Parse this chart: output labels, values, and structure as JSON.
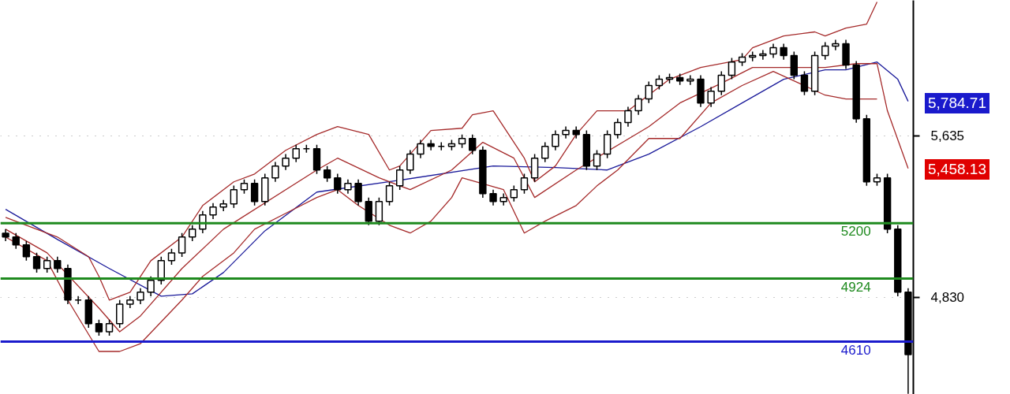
{
  "chart_data": {
    "type": "candlestick",
    "categories": [
      null,
      null,
      null,
      null,
      null,
      null,
      null,
      null,
      null,
      null,
      null,
      null,
      null,
      null,
      null,
      null,
      null,
      null,
      null,
      null,
      null,
      null,
      null,
      null,
      null,
      null,
      null,
      null,
      null,
      null,
      null,
      null,
      null,
      null,
      null,
      null,
      null,
      null,
      null,
      null,
      null,
      null,
      null,
      null,
      null,
      null,
      null,
      null,
      null,
      null,
      null,
      null,
      null,
      null,
      null,
      null,
      null,
      null,
      null,
      null,
      null,
      null,
      null,
      null,
      null,
      null,
      null,
      null,
      null,
      null,
      null,
      null,
      null,
      null,
      null,
      null,
      null,
      null,
      null,
      null,
      null,
      null,
      null,
      null,
      null,
      null,
      null,
      null
    ],
    "color": "#000000",
    "ohlc": [
      [
        5150,
        5170,
        5111,
        5131
      ],
      [
        5131,
        5151,
        5072,
        5092
      ],
      [
        5092,
        5112,
        5013,
        5033
      ],
      [
        5033,
        5053,
        4954,
        4974
      ],
      [
        4974,
        5033,
        4954,
        5013
      ],
      [
        5013,
        5033,
        4954,
        4974
      ],
      [
        4974,
        4994,
        4797,
        4817
      ],
      [
        4817,
        4837,
        4797,
        4817
      ],
      [
        4817,
        4837,
        4679,
        4699
      ],
      [
        4699,
        4719,
        4639,
        4659
      ],
      [
        4659,
        4719,
        4639,
        4699
      ],
      [
        4699,
        4817,
        4679,
        4797
      ],
      [
        4797,
        4837,
        4777,
        4817
      ],
      [
        4817,
        4876,
        4797,
        4856
      ],
      [
        4856,
        4935,
        4836,
        4915
      ],
      [
        4915,
        5033,
        4895,
        5013
      ],
      [
        5013,
        5072,
        4993,
        5052
      ],
      [
        5052,
        5151,
        5032,
        5131
      ],
      [
        5131,
        5190,
        5111,
        5170
      ],
      [
        5170,
        5261,
        5150,
        5241
      ],
      [
        5241,
        5300,
        5221,
        5280
      ],
      [
        5280,
        5316,
        5260,
        5296
      ],
      [
        5296,
        5387,
        5276,
        5367
      ],
      [
        5367,
        5418,
        5347,
        5398
      ],
      [
        5398,
        5418,
        5288,
        5308
      ],
      [
        5308,
        5446,
        5288,
        5426
      ],
      [
        5426,
        5505,
        5406,
        5485
      ],
      [
        5485,
        5544,
        5465,
        5524
      ],
      [
        5524,
        5591,
        5504,
        5571
      ],
      [
        5571,
        5591,
        5551,
        5571
      ],
      [
        5571,
        5591,
        5445,
        5465
      ],
      [
        5465,
        5485,
        5406,
        5426
      ],
      [
        5426,
        5446,
        5347,
        5367
      ],
      [
        5367,
        5418,
        5347,
        5398
      ],
      [
        5398,
        5418,
        5288,
        5308
      ],
      [
        5308,
        5328,
        5190,
        5210
      ],
      [
        5210,
        5328,
        5190,
        5308
      ],
      [
        5308,
        5406,
        5288,
        5386
      ],
      [
        5386,
        5485,
        5366,
        5465
      ],
      [
        5465,
        5564,
        5445,
        5544
      ],
      [
        5544,
        5615,
        5524,
        5595
      ],
      [
        5595,
        5615,
        5563,
        5583
      ],
      [
        5583,
        5603,
        5563,
        5583
      ],
      [
        5583,
        5615,
        5563,
        5595
      ],
      [
        5595,
        5642,
        5575,
        5622
      ],
      [
        5622,
        5642,
        5543,
        5563
      ],
      [
        5563,
        5583,
        5327,
        5347
      ],
      [
        5347,
        5367,
        5288,
        5308
      ],
      [
        5308,
        5348,
        5288,
        5328
      ],
      [
        5328,
        5387,
        5308,
        5367
      ],
      [
        5367,
        5446,
        5347,
        5426
      ],
      [
        5426,
        5544,
        5406,
        5524
      ],
      [
        5524,
        5603,
        5504,
        5583
      ],
      [
        5583,
        5662,
        5563,
        5642
      ],
      [
        5642,
        5682,
        5622,
        5662
      ],
      [
        5662,
        5682,
        5622,
        5642
      ],
      [
        5642,
        5662,
        5465,
        5485
      ],
      [
        5485,
        5564,
        5465,
        5544
      ],
      [
        5544,
        5662,
        5524,
        5642
      ],
      [
        5642,
        5721,
        5622,
        5701
      ],
      [
        5701,
        5780,
        5681,
        5760
      ],
      [
        5760,
        5839,
        5740,
        5819
      ],
      [
        5819,
        5906,
        5799,
        5886
      ],
      [
        5886,
        5937,
        5866,
        5917
      ],
      [
        5917,
        5945,
        5897,
        5925
      ],
      [
        5925,
        5945,
        5889,
        5909
      ],
      [
        5909,
        5937,
        5889,
        5917
      ],
      [
        5917,
        5937,
        5779,
        5799
      ],
      [
        5799,
        5878,
        5779,
        5858
      ],
      [
        5858,
        5957,
        5838,
        5937
      ],
      [
        5937,
        6023,
        5917,
        6003
      ],
      [
        6003,
        6047,
        5983,
        6027
      ],
      [
        6027,
        6055,
        6007,
        6035
      ],
      [
        6035,
        6063,
        6015,
        6043
      ],
      [
        6043,
        6094,
        6023,
        6074
      ],
      [
        6074,
        6094,
        6015,
        6035
      ],
      [
        6035,
        6055,
        5917,
        5937
      ],
      [
        5937,
        5957,
        5838,
        5858
      ],
      [
        5858,
        6055,
        5838,
        6035
      ],
      [
        6035,
        6102,
        6015,
        6082
      ],
      [
        6082,
        6114,
        6062,
        6094
      ],
      [
        6094,
        6114,
        5968,
        5988
      ],
      [
        5988,
        6008,
        5700,
        5720
      ],
      [
        5720,
        5740,
        5386,
        5406
      ],
      [
        5406,
        5446,
        5386,
        5426
      ],
      [
        5426,
        5446,
        5150,
        5170
      ],
      [
        5170,
        5190,
        4836,
        4856
      ],
      [
        4856,
        4876,
        4350,
        4545
      ]
    ],
    "series": [
      {
        "type": "line",
        "color": "#1a1a9a",
        "values": [
          5269,
          null,
          null,
          null,
          null,
          5119,
          null,
          null,
          null,
          null,
          4974,
          null,
          null,
          null,
          null,
          4836,
          null,
          null,
          4848,
          null,
          null,
          4954,
          null,
          null,
          null,
          5162,
          null,
          null,
          null,
          null,
          5355,
          null,
          null,
          null,
          null,
          null,
          null,
          null,
          5414,
          null,
          null,
          null,
          null,
          null,
          null,
          null,
          null,
          5485,
          null,
          null,
          null,
          null,
          null,
          5477,
          null,
          null,
          null,
          null,
          5465,
          null,
          null,
          null,
          5544,
          null,
          null,
          null,
          null,
          5681,
          null,
          null,
          null,
          5799,
          null,
          null,
          null,
          5917,
          null,
          null,
          null,
          5964,
          null,
          5964,
          null,
          null,
          6003,
          null,
          5917,
          5807
        ]
      },
      {
        "type": "line",
        "color": "#a52a2a",
        "values": [
          5229,
          null,
          null,
          5170,
          null,
          5131,
          null,
          null,
          5033,
          4935,
          4817,
          null,
          4856,
          null,
          5013,
          null,
          null,
          5131,
          null,
          5288,
          null,
          null,
          5406,
          null,
          5445,
          null,
          null,
          5563,
          null,
          null,
          5642,
          null,
          5681,
          null,
          null,
          5642,
          null,
          5465,
          5485,
          null,
          null,
          5662,
          null,
          null,
          5673,
          5740,
          null,
          5760,
          5681,
          null,
          5524,
          5406,
          null,
          5485,
          null,
          5642,
          null,
          5760,
          null,
          null,
          5760,
          null,
          null,
          null,
          5917,
          null,
          null,
          5976,
          null,
          null,
          null,
          6015,
          6074,
          null,
          null,
          6133,
          null,
          null,
          6153,
          6133,
          null,
          6172,
          null,
          6192,
          6302,
          null,
          null,
          null
        ]
      },
      {
        "type": "line",
        "color": "#a52a2a",
        "values": [
          5170,
          null,
          null,
          null,
          5052,
          null,
          null,
          null,
          null,
          4777,
          null,
          4659,
          null,
          4738,
          null,
          null,
          null,
          4974,
          null,
          null,
          null,
          5170,
          null,
          null,
          null,
          null,
          null,
          null,
          null,
          null,
          5465,
          null,
          5524,
          null,
          null,
          null,
          5426,
          null,
          null,
          5367,
          null,
          null,
          null,
          5465,
          null,
          null,
          5603,
          null,
          null,
          5524,
          null,
          5328,
          null,
          null,
          null,
          5465,
          null,
          null,
          null,
          null,
          null,
          null,
          5681,
          null,
          null,
          5799,
          null,
          null,
          null,
          5897,
          null,
          null,
          5976,
          null,
          null,
          null,
          null,
          null,
          null,
          5976,
          null,
          null,
          5995,
          null,
          5995,
          5760,
          null,
          5473
        ]
      },
      {
        "type": "line",
        "color": "#a52a2a",
        "values": [
          5131,
          null,
          null,
          null,
          5013,
          null,
          4817,
          null,
          null,
          4561,
          null,
          4561,
          null,
          4600,
          null,
          null,
          null,
          4817,
          null,
          4935,
          null,
          null,
          5052,
          null,
          5170,
          null,
          null,
          5249,
          null,
          null,
          5328,
          null,
          5367,
          null,
          5288,
          null,
          null,
          5190,
          null,
          5151,
          null,
          5210,
          null,
          5328,
          5426,
          null,
          null,
          null,
          5367,
          null,
          5151,
          null,
          5210,
          null,
          null,
          5288,
          null,
          5386,
          null,
          5465,
          null,
          null,
          5622,
          null,
          null,
          5622,
          null,
          null,
          5799,
          null,
          null,
          5886,
          null,
          null,
          5956,
          null,
          null,
          null,
          null,
          5838,
          null,
          5819,
          null,
          null,
          5819,
          null,
          null,
          null
        ]
      }
    ],
    "ref_lines": [
      {
        "axis": "y",
        "value": 5200,
        "label": "5200",
        "color": "#1f8a1f"
      },
      {
        "axis": "y",
        "value": 4924,
        "label": "4924",
        "color": "#1f8a1f"
      },
      {
        "axis": "y",
        "value": 4610,
        "label": "4610",
        "color": "#1a1acc"
      }
    ],
    "annotations": [
      "5,784.71",
      "5,458.13"
    ],
    "ylim": [
      4347,
      6310
    ],
    "yticks": [
      {
        "value": 5635,
        "label": "5,635"
      },
      {
        "value": 4830,
        "label": "4,830"
      }
    ],
    "grid": "y",
    "tick_labels": "y"
  }
}
